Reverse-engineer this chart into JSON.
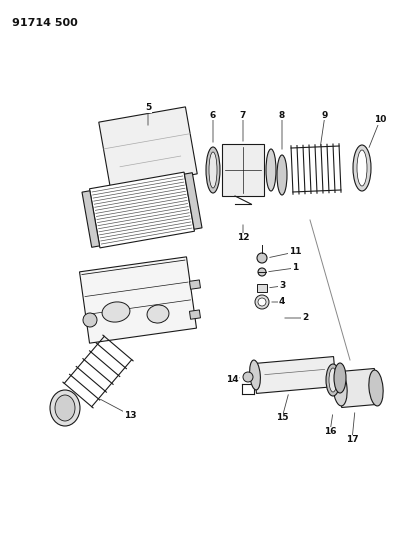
{
  "title": "91714 500",
  "bg_color": "#ffffff",
  "line_color": "#1a1a1a",
  "label_color": "#111111",
  "figsize": [
    3.97,
    5.33
  ],
  "dpi": 100
}
